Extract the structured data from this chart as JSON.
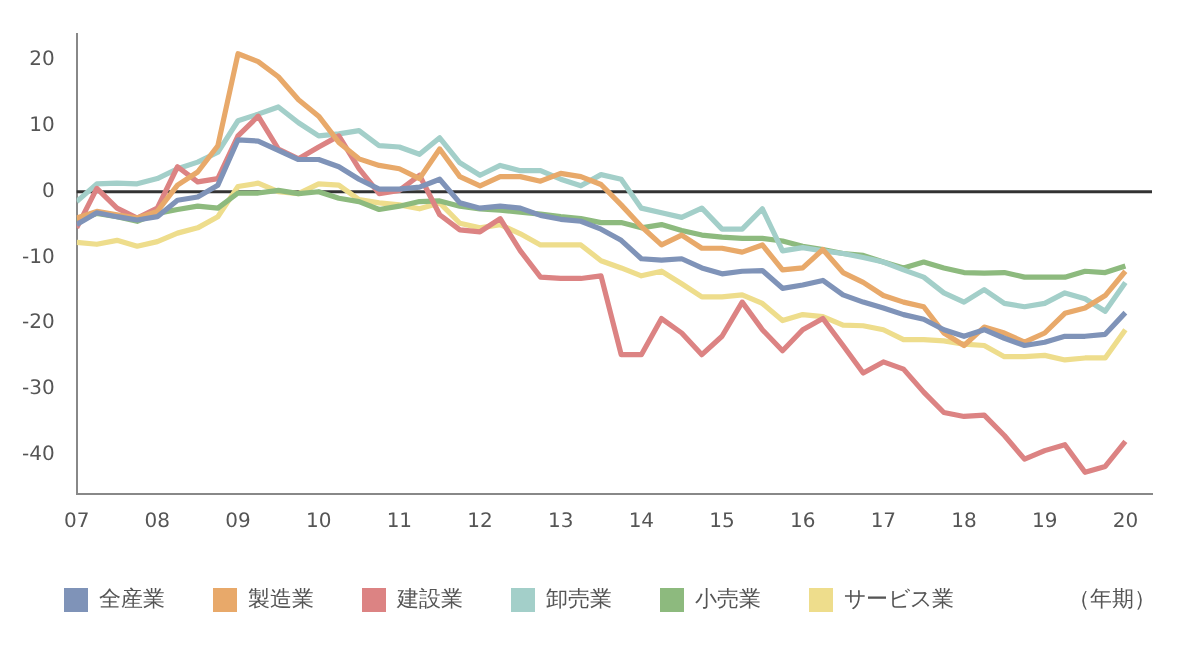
{
  "chart_data": {
    "type": "line",
    "annotations": [
      "（年期）"
    ],
    "x": [
      2007,
      2007.25,
      2007.5,
      2007.75,
      2008,
      2008.25,
      2008.5,
      2008.75,
      2009,
      2009.25,
      2009.5,
      2009.75,
      2010,
      2010.25,
      2010.5,
      2010.75,
      2011,
      2011.25,
      2011.5,
      2011.75,
      2012,
      2012.25,
      2012.5,
      2012.75,
      2013,
      2013.25,
      2013.5,
      2013.75,
      2014,
      2014.25,
      2014.5,
      2014.75,
      2015,
      2015.25,
      2015.5,
      2015.75,
      2016,
      2016.25,
      2016.5,
      2016.75,
      2017,
      2017.25,
      2017.5,
      2017.75,
      2018,
      2018.25,
      2018.5,
      2018.75,
      2019,
      2019.25,
      2019.5,
      2019.75,
      2020
    ],
    "series": [
      {
        "name": "全産業",
        "color": "#7f93b8",
        "values": [
          -5,
          -3.2,
          -3.8,
          -4.3,
          -3.8,
          -1.3,
          -0.8,
          1,
          7.9,
          7.7,
          6.3,
          4.9,
          4.9,
          3.8,
          1.9,
          0.4,
          0.4,
          0.7,
          1.9,
          -1.7,
          -2.5,
          -2.2,
          -2.5,
          -3.6,
          -4.2,
          -4.5,
          -5.7,
          -7.4,
          -10.2,
          -10.4,
          -10.2,
          -11.6,
          -12.5,
          -12.1,
          -12,
          -14.7,
          -14.2,
          -13.5,
          -15.7,
          -16.8,
          -17.7,
          -18.7,
          -19.4,
          -21,
          -22,
          -21,
          -22.3,
          -23.4,
          -22.9,
          -22,
          -22,
          -21.7,
          -18.4
        ]
      },
      {
        "name": "製造業",
        "color": "#e8a96a",
        "values": [
          -4,
          -3,
          -3.5,
          -4,
          -3,
          1,
          3,
          7,
          21,
          19.8,
          17.5,
          14,
          11.5,
          7.5,
          5,
          4,
          3.5,
          2,
          6.5,
          2.3,
          0.9,
          2.3,
          2.3,
          1.6,
          2.8,
          2.3,
          1.1,
          -2,
          -5.3,
          -8.1,
          -6.6,
          -8.6,
          -8.6,
          -9.2,
          -8.1,
          -11.9,
          -11.6,
          -8.8,
          -12.3,
          -13.8,
          -15.8,
          -16.8,
          -17.5,
          -21.5,
          -23.4,
          -20.6,
          -21.5,
          -22.9,
          -21.5,
          -18.5,
          -17.7,
          -15.8,
          -12.1
        ]
      },
      {
        "name": "建設業",
        "color": "#dc8383",
        "values": [
          -5.5,
          0.5,
          -2.5,
          -4,
          -2.5,
          3.8,
          1.5,
          2,
          8.5,
          11.5,
          6.5,
          5,
          6.8,
          8.5,
          3.5,
          -0.3,
          0.2,
          2.5,
          -3.5,
          -5.8,
          -6.1,
          -4.1,
          -9,
          -13,
          -13.2,
          -13.2,
          -12.8,
          -24.8,
          -24.8,
          -19.3,
          -21.5,
          -24.8,
          -22,
          -16.8,
          -21,
          -24.2,
          -21,
          -19.3,
          -23.4,
          -27.6,
          -25.9,
          -27,
          -30.5,
          -33.6,
          -34.2,
          -34,
          -37.1,
          -40.7,
          -39.4,
          -38.5,
          -42.7,
          -41.8,
          -38
        ]
      },
      {
        "name": "卸売業",
        "color": "#a3cfc9",
        "values": [
          -1.5,
          1.2,
          1.3,
          1.2,
          2,
          3.5,
          4.5,
          6,
          10.8,
          11.8,
          12.9,
          10.5,
          8.5,
          8.8,
          9.3,
          7,
          6.8,
          5.7,
          8.2,
          4.4,
          2.5,
          4,
          3.2,
          3.2,
          1.9,
          0.9,
          2.6,
          1.9,
          -2.5,
          -3.2,
          -3.9,
          -2.5,
          -5.7,
          -5.7,
          -2.6,
          -9,
          -8.5,
          -9,
          -9.4,
          -10,
          -10.7,
          -11.9,
          -13,
          -15.4,
          -16.8,
          -14.9,
          -17,
          -17.5,
          -17,
          -15.4,
          -16.3,
          -18.2,
          -13.8
        ]
      },
      {
        "name": "小売業",
        "color": "#8dba7e",
        "values": [
          -4.5,
          -3.3,
          -3.8,
          -4.5,
          -3.3,
          -2.7,
          -2.2,
          -2.5,
          -0.2,
          -0.2,
          0.2,
          -0.3,
          0,
          -1,
          -1.5,
          -2.7,
          -2.2,
          -1.5,
          -1.4,
          -2.2,
          -2.6,
          -2.8,
          -3.1,
          -3.4,
          -3.8,
          -4.1,
          -4.7,
          -4.7,
          -5.5,
          -5,
          -5.9,
          -6.6,
          -6.9,
          -7.1,
          -7.1,
          -7.5,
          -8.3,
          -8.8,
          -9.4,
          -9.7,
          -10.7,
          -11.6,
          -10.7,
          -11.6,
          -12.3,
          -12.4,
          -12.3,
          -13,
          -13,
          -13,
          -12.1,
          -12.3,
          -11.3
        ]
      },
      {
        "name": "サービス業",
        "color": "#eedd8c",
        "values": [
          -7.7,
          -8,
          -7.4,
          -8.3,
          -7.6,
          -6.3,
          -5.5,
          -3.8,
          0.8,
          1.3,
          0,
          -0.3,
          1.2,
          1,
          -1.2,
          -1.7,
          -2,
          -2.6,
          -1.7,
          -4.8,
          -5.5,
          -5,
          -6.4,
          -8.1,
          -8.1,
          -8.1,
          -10.5,
          -11.6,
          -12.8,
          -12.1,
          -14,
          -16,
          -16,
          -15.7,
          -17,
          -19.6,
          -18.7,
          -19,
          -20.3,
          -20.4,
          -21,
          -22.5,
          -22.5,
          -22.7,
          -23.2,
          -23.4,
          -25.1,
          -25.1,
          -24.9,
          -25.6,
          -25.3,
          -25.3,
          -21
        ]
      }
    ],
    "xlim": [
      2007,
      2020.33
    ],
    "xticks": [
      {
        "value": 2007,
        "label": "07"
      },
      {
        "value": 2008,
        "label": "08"
      },
      {
        "value": 2009,
        "label": "09"
      },
      {
        "value": 2010,
        "label": "10"
      },
      {
        "value": 2011,
        "label": "11"
      },
      {
        "value": 2012,
        "label": "12"
      },
      {
        "value": 2013,
        "label": "13"
      },
      {
        "value": 2014,
        "label": "14"
      },
      {
        "value": 2015,
        "label": "15"
      },
      {
        "value": 2016,
        "label": "16"
      },
      {
        "value": 2017,
        "label": "17"
      },
      {
        "value": 2018,
        "label": "18"
      },
      {
        "value": 2019,
        "label": "19"
      },
      {
        "value": 2020,
        "label": "20"
      }
    ],
    "ylim": [
      -46,
      24
    ],
    "yticks": [
      -40,
      -30,
      -20,
      -10,
      0,
      10,
      20
    ],
    "ref_lines": [
      {
        "axis": "y",
        "value": 0,
        "color": "#333333"
      }
    ],
    "grid": false,
    "legend": "bottom",
    "marker": "none",
    "line_style": "solid"
  }
}
